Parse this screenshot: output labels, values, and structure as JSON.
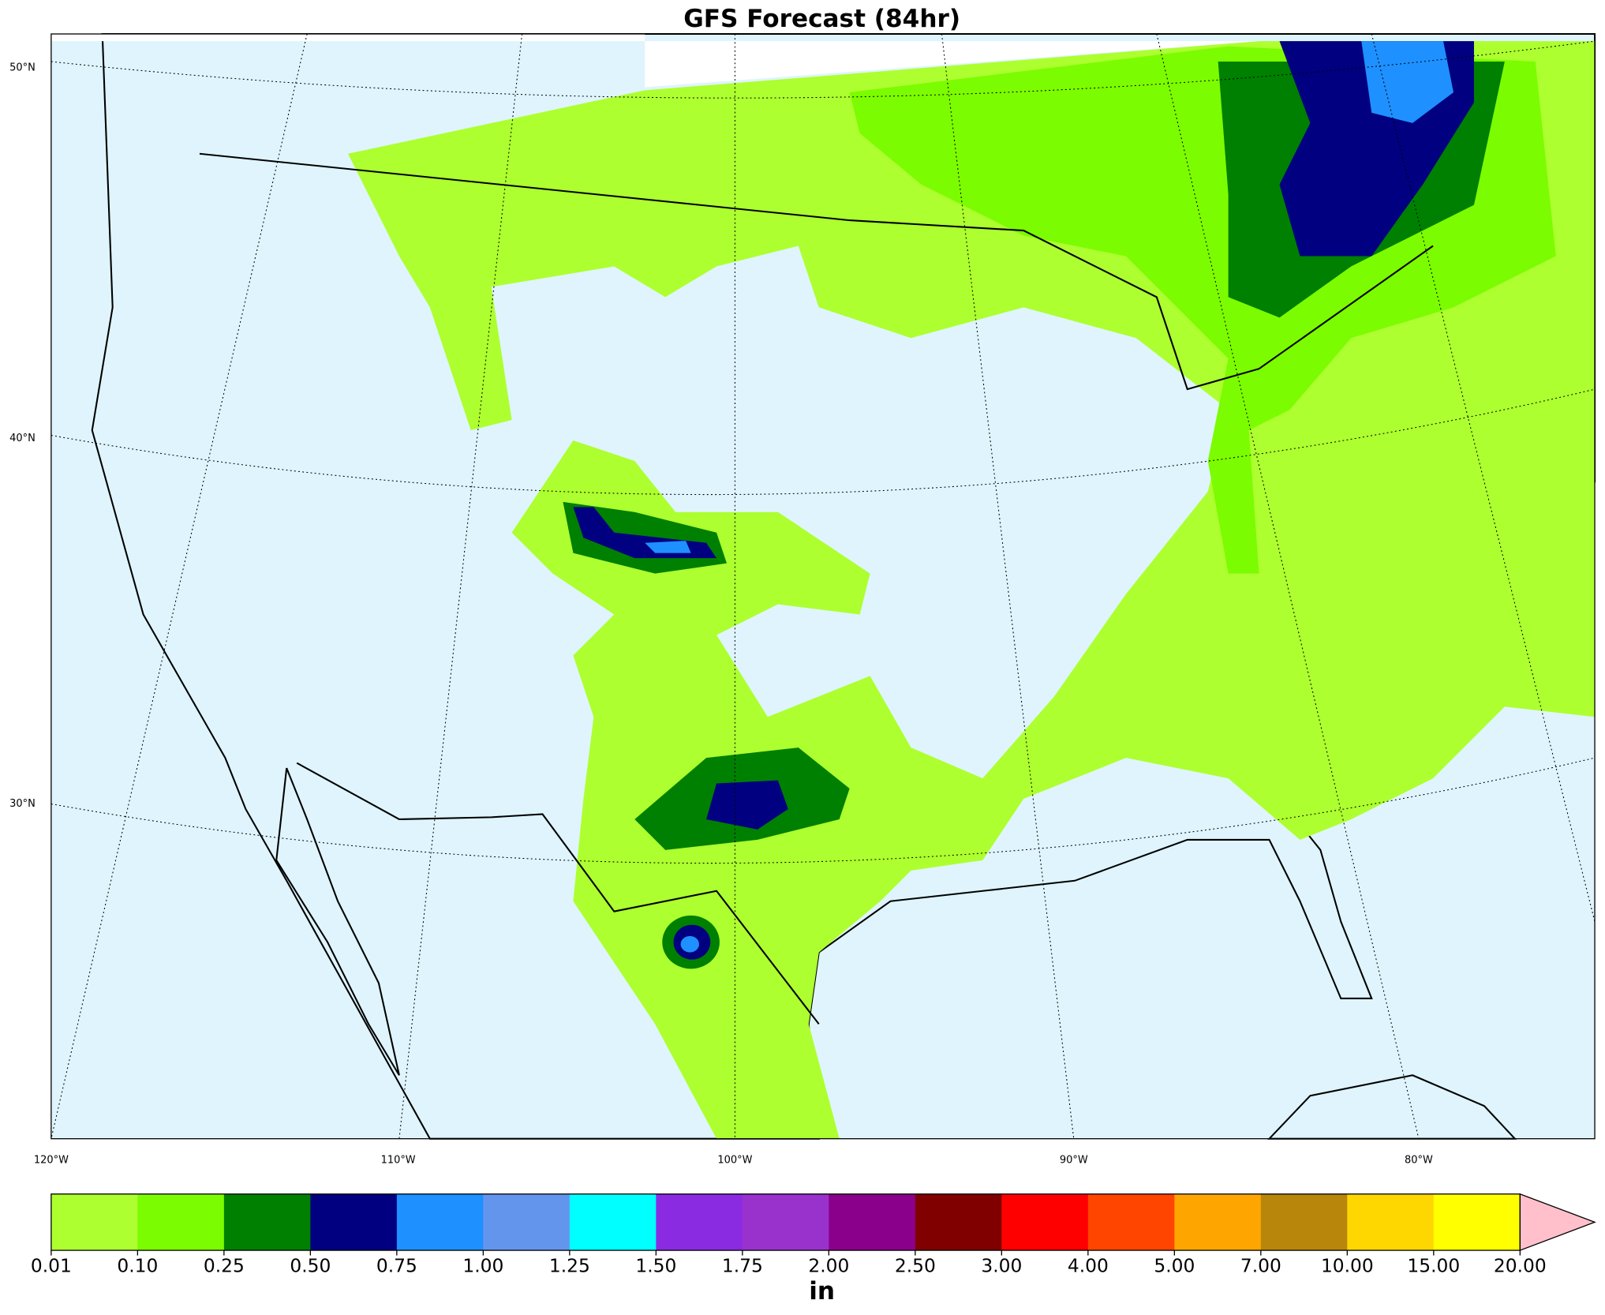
{
  "title": "GFS Forecast (84hr)",
  "map": {
    "lat_labels": [
      "50°N",
      "40°N",
      "30°N"
    ],
    "lon_labels": [
      "120°W",
      "110°W",
      "100°W",
      "90°W",
      "80°W"
    ]
  },
  "colorbar": {
    "levels": [
      {
        "value": 0.01,
        "label": "0.01"
      },
      {
        "value": 0.1,
        "label": "0.10"
      },
      {
        "value": 0.25,
        "label": "0.25"
      },
      {
        "value": 0.5,
        "label": "0.50"
      },
      {
        "value": 0.75,
        "label": "0.75"
      },
      {
        "value": 1,
        "label": "1.00"
      },
      {
        "value": 1.25,
        "label": "1.25"
      },
      {
        "value": 1.5,
        "label": "1.50"
      },
      {
        "value": 1.75,
        "label": "1.75"
      },
      {
        "value": 2,
        "label": "2.00"
      },
      {
        "value": 2.5,
        "label": "2.50"
      },
      {
        "value": 3,
        "label": "3.00"
      },
      {
        "value": 4,
        "label": "4.00"
      },
      {
        "value": 5,
        "label": "5.00"
      },
      {
        "value": 7,
        "label": "7.00"
      },
      {
        "value": 10,
        "label": "10.00"
      },
      {
        "value": 15,
        "label": "15.00"
      },
      {
        "value": 20,
        "label": "20.00"
      }
    ],
    "colors": [
      "#adff2f",
      "#7cfc00",
      "#008000",
      "#000080",
      "#1e90ff",
      "#6495ed",
      "#00ffff",
      "#8a2be2",
      "#9932cc",
      "#8b008b",
      "#800000",
      "#ff0000",
      "#ff4500",
      "#ffa500",
      "#b8860b",
      "#ffd700",
      "#ffff00"
    ],
    "extend_color": "#ffc0cb",
    "unit": "in"
  }
}
